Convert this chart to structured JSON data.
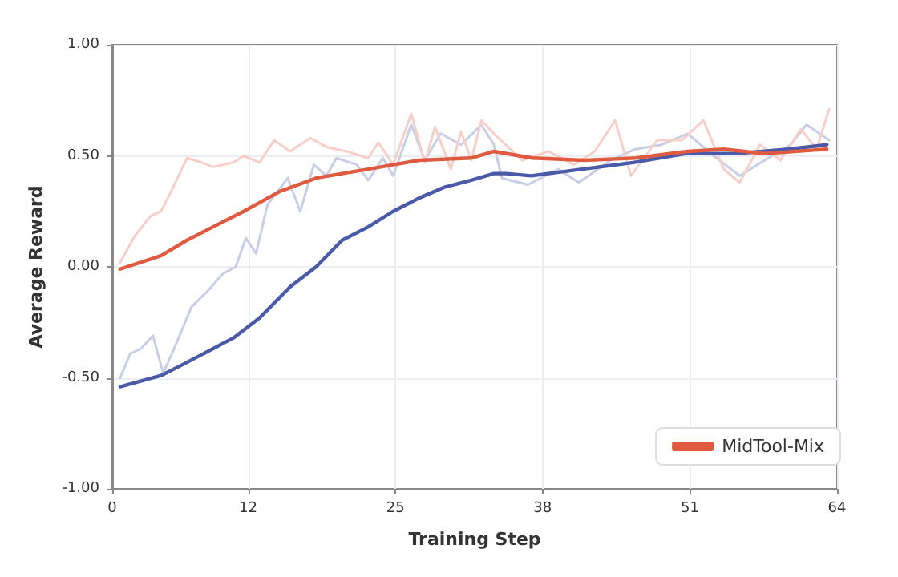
{
  "chart_data": {
    "type": "line",
    "xlabel": "Training Step",
    "ylabel": "Average Reward",
    "xlim": [
      0,
      64
    ],
    "xticks": [
      0,
      12,
      25,
      38,
      51,
      64
    ],
    "ylim": [
      -1,
      1
    ],
    "yticks": [
      {
        "value": -1,
        "label": "-1.00"
      },
      {
        "value": -0.5,
        "label": "-0.50"
      },
      {
        "value": 0,
        "label": "0.00"
      },
      {
        "value": 0.5,
        "label": "0.50"
      },
      {
        "value": 1,
        "label": "1.00"
      }
    ],
    "grid": true,
    "legend": "bottom right",
    "line_style": "solid",
    "marker": "none",
    "series": [
      {
        "color": "#c9cde6",
        "x": [
          0.7,
          1.6,
          2.5,
          3.6,
          4.5,
          5.7,
          7.0,
          8.4,
          9.8,
          10.9,
          11.8,
          12.7,
          13.7,
          15.5,
          16.6,
          17.8,
          18.9,
          19.8,
          21.6,
          22.6,
          23.9,
          24.8,
          26.4,
          27.6,
          29.0,
          30.8,
          32.6,
          33.7,
          34.4,
          36.7,
          39.4,
          41.2,
          44.0,
          46.2,
          48.5,
          50.8,
          53.1,
          55.4,
          57.6,
          59.9,
          61.3,
          63.3
        ],
        "values": [
          -0.5,
          -0.39,
          -0.37,
          -0.31,
          -0.48,
          -0.34,
          -0.18,
          -0.11,
          -0.03,
          0.0,
          0.13,
          0.06,
          0.28,
          0.4,
          0.25,
          0.46,
          0.41,
          0.49,
          0.46,
          0.39,
          0.49,
          0.41,
          0.64,
          0.48,
          0.6,
          0.55,
          0.64,
          0.55,
          0.4,
          0.37,
          0.44,
          0.38,
          0.48,
          0.53,
          0.55,
          0.6,
          0.5,
          0.41,
          0.48,
          0.55,
          0.64,
          0.57
        ]
      },
      {
        "color": "#f6cfc8",
        "x": [
          0.7,
          2.0,
          3.4,
          4.3,
          5.2,
          6.6,
          7.9,
          8.9,
          10.7,
          11.6,
          13.0,
          14.3,
          15.7,
          17.5,
          18.9,
          20.7,
          22.6,
          23.5,
          24.8,
          26.4,
          27.6,
          28.5,
          29.9,
          30.8,
          31.7,
          32.6,
          33.7,
          36.2,
          38.5,
          40.8,
          42.6,
          44.4,
          45.8,
          48.1,
          50.3,
          52.2,
          54.0,
          55.4,
          57.2,
          59.0,
          60.8,
          62.2,
          63.3
        ],
        "values": [
          0.02,
          0.14,
          0.23,
          0.25,
          0.34,
          0.49,
          0.47,
          0.45,
          0.47,
          0.5,
          0.47,
          0.57,
          0.52,
          0.58,
          0.54,
          0.52,
          0.49,
          0.56,
          0.46,
          0.69,
          0.47,
          0.63,
          0.44,
          0.61,
          0.48,
          0.66,
          0.6,
          0.48,
          0.52,
          0.46,
          0.52,
          0.66,
          0.41,
          0.57,
          0.57,
          0.66,
          0.44,
          0.38,
          0.55,
          0.48,
          0.62,
          0.53,
          0.71
        ]
      },
      {
        "color": "#4a5aa8",
        "x": [
          0.7,
          4.3,
          6.6,
          10.7,
          13.0,
          15.7,
          18.0,
          20.3,
          22.6,
          24.8,
          27.1,
          29.4,
          31.7,
          33.7,
          34.8,
          37.0,
          41.5,
          46.0,
          50.6,
          55.1,
          59.7,
          63.1
        ],
        "values": [
          -0.54,
          -0.49,
          -0.43,
          -0.32,
          -0.23,
          -0.09,
          0.0,
          0.12,
          0.18,
          0.25,
          0.31,
          0.36,
          0.39,
          0.42,
          0.42,
          0.41,
          0.44,
          0.47,
          0.51,
          0.51,
          0.53,
          0.55
        ]
      },
      {
        "name": "MidTool-Mix",
        "color": "#e05a3f",
        "x": [
          0.7,
          4.3,
          6.6,
          8.9,
          11.6,
          14.8,
          18.0,
          20.3,
          22.6,
          24.8,
          27.1,
          31.7,
          33.7,
          37.1,
          41.7,
          46.2,
          50.8,
          54.0,
          57.6,
          63.1
        ],
        "values": [
          -0.01,
          0.05,
          0.12,
          0.18,
          0.25,
          0.34,
          0.4,
          0.42,
          0.44,
          0.46,
          0.48,
          0.49,
          0.52,
          0.49,
          0.48,
          0.49,
          0.52,
          0.53,
          0.51,
          0.53
        ]
      }
    ]
  }
}
